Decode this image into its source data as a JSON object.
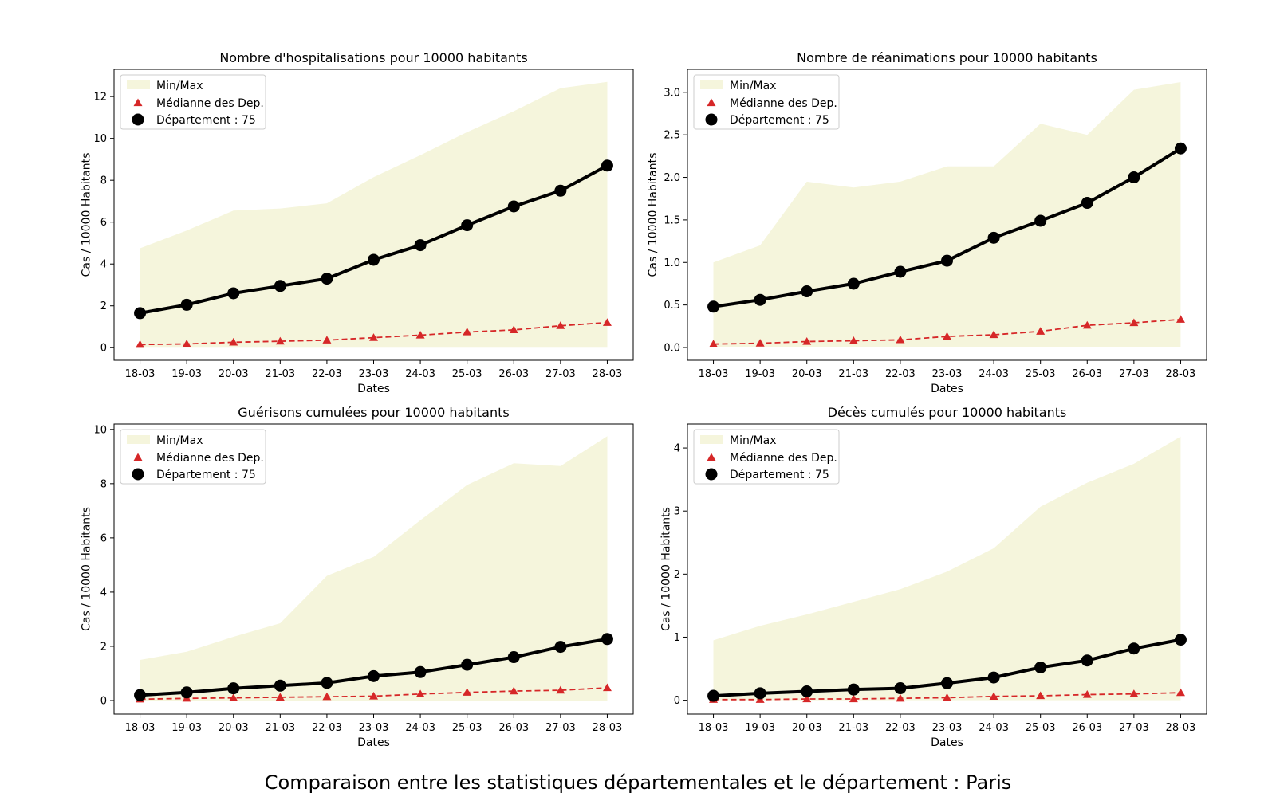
{
  "figure": {
    "suptitle": "Comparaison entre les statistiques départementales et le département : Paris"
  },
  "colors": {
    "band": "#f5f5dc",
    "median": "#d62728",
    "department": "#000000"
  },
  "legend_labels": [
    "Min/Max",
    "Médianne des Dep.",
    "Département : 75"
  ],
  "chart_data": [
    {
      "type": "line",
      "title": "Nombre d'hospitalisations pour 10000 habitants",
      "xlabel": "Dates",
      "ylabel": "Cas / 10000 Habitants",
      "categories": [
        "18-03",
        "19-03",
        "20-03",
        "21-03",
        "22-03",
        "23-03",
        "24-03",
        "25-03",
        "26-03",
        "27-03",
        "28-03"
      ],
      "ylim": [
        -0.6,
        13.3
      ],
      "yticks": [
        0,
        2,
        4,
        6,
        8,
        10,
        12
      ],
      "ytick_labels": [
        "0",
        "2",
        "4",
        "6",
        "8",
        "10",
        "12"
      ],
      "legend_position": "upper left",
      "band": {
        "name": "Min/Max",
        "min": [
          0,
          0,
          0,
          0,
          0,
          0,
          0,
          0,
          0,
          0,
          0
        ],
        "max": [
          4.75,
          5.6,
          6.55,
          6.65,
          6.9,
          8.15,
          9.2,
          10.3,
          11.3,
          12.4,
          12.7
        ]
      },
      "series": [
        {
          "name": "Médianne des Dep.",
          "style": "dashed-triangle",
          "values": [
            0.15,
            0.18,
            0.26,
            0.31,
            0.36,
            0.48,
            0.6,
            0.75,
            0.85,
            1.05,
            1.2
          ]
        },
        {
          "name": "Département : 75",
          "style": "solid-circle",
          "values": [
            1.65,
            2.05,
            2.6,
            2.95,
            3.3,
            4.2,
            4.9,
            5.85,
            6.75,
            7.5,
            8.7
          ]
        }
      ]
    },
    {
      "type": "line",
      "title": "Nombre de réanimations pour 10000 habitants",
      "xlabel": "Dates",
      "ylabel": "Cas / 10000 Habitants",
      "categories": [
        "18-03",
        "19-03",
        "20-03",
        "21-03",
        "22-03",
        "23-03",
        "24-03",
        "25-03",
        "26-03",
        "27-03",
        "28-03"
      ],
      "ylim": [
        -0.15,
        3.27
      ],
      "yticks": [
        0,
        0.5,
        1.0,
        1.5,
        2.0,
        2.5,
        3.0
      ],
      "ytick_labels": [
        "0.0",
        "0.5",
        "1.0",
        "1.5",
        "2.0",
        "2.5",
        "3.0"
      ],
      "legend_position": "upper left",
      "band": {
        "name": "Min/Max",
        "min": [
          0,
          0,
          0,
          0,
          0,
          0,
          0,
          0,
          0,
          0,
          0
        ],
        "max": [
          1.0,
          1.2,
          1.95,
          1.88,
          1.95,
          2.13,
          2.13,
          2.63,
          2.5,
          3.03,
          3.12
        ]
      },
      "series": [
        {
          "name": "Médianne des Dep.",
          "style": "dashed-triangle",
          "values": [
            0.04,
            0.05,
            0.07,
            0.08,
            0.09,
            0.13,
            0.15,
            0.19,
            0.26,
            0.29,
            0.33
          ]
        },
        {
          "name": "Département : 75",
          "style": "solid-circle",
          "values": [
            0.48,
            0.56,
            0.66,
            0.75,
            0.89,
            1.02,
            1.29,
            1.49,
            1.7,
            2.0,
            2.34
          ]
        }
      ]
    },
    {
      "type": "line",
      "title": "Guérisons cumulées pour 10000 habitants",
      "xlabel": "Dates",
      "ylabel": "Cas / 10000 Habitants",
      "categories": [
        "18-03",
        "19-03",
        "20-03",
        "21-03",
        "22-03",
        "23-03",
        "24-03",
        "25-03",
        "26-03",
        "27-03",
        "28-03"
      ],
      "ylim": [
        -0.5,
        10.2
      ],
      "yticks": [
        0,
        2,
        4,
        6,
        8,
        10
      ],
      "ytick_labels": [
        "0",
        "2",
        "4",
        "6",
        "8",
        "10"
      ],
      "legend_position": "upper left",
      "band": {
        "name": "Min/Max",
        "min": [
          0,
          0,
          0,
          0,
          0,
          0,
          0,
          0,
          0,
          0,
          0
        ],
        "max": [
          1.5,
          1.8,
          2.35,
          2.85,
          4.6,
          5.3,
          6.65,
          7.95,
          8.75,
          8.65,
          9.75
        ]
      },
      "series": [
        {
          "name": "Médianne des Dep.",
          "style": "dashed-triangle",
          "values": [
            0.05,
            0.08,
            0.1,
            0.12,
            0.14,
            0.16,
            0.24,
            0.3,
            0.35,
            0.38,
            0.47
          ]
        },
        {
          "name": "Département : 75",
          "style": "solid-circle",
          "values": [
            0.2,
            0.3,
            0.45,
            0.55,
            0.65,
            0.9,
            1.05,
            1.32,
            1.6,
            1.98,
            2.27
          ]
        }
      ]
    },
    {
      "type": "line",
      "title": "Décès cumulés pour 10000 habitants",
      "xlabel": "Dates",
      "ylabel": "Cas / 10000 Habitants",
      "categories": [
        "18-03",
        "19-03",
        "20-03",
        "21-03",
        "22-03",
        "23-03",
        "24-03",
        "25-03",
        "26-03",
        "27-03",
        "28-03"
      ],
      "ylim": [
        -0.22,
        4.38
      ],
      "yticks": [
        0,
        1,
        2,
        3,
        4
      ],
      "ytick_labels": [
        "0",
        "1",
        "2",
        "3",
        "4"
      ],
      "legend_position": "upper left",
      "band": {
        "name": "Min/Max",
        "min": [
          0,
          0,
          0,
          0,
          0,
          0,
          0,
          0,
          0,
          0,
          0
        ],
        "max": [
          0.95,
          1.18,
          1.36,
          1.56,
          1.76,
          2.04,
          2.41,
          3.07,
          3.45,
          3.75,
          4.18
        ]
      },
      "series": [
        {
          "name": "Médianne des Dep.",
          "style": "dashed-triangle",
          "values": [
            0.01,
            0.01,
            0.02,
            0.02,
            0.03,
            0.04,
            0.06,
            0.07,
            0.09,
            0.1,
            0.12
          ]
        },
        {
          "name": "Département : 75",
          "style": "solid-circle",
          "values": [
            0.07,
            0.11,
            0.14,
            0.17,
            0.19,
            0.27,
            0.36,
            0.52,
            0.63,
            0.82,
            0.96
          ]
        }
      ]
    }
  ]
}
